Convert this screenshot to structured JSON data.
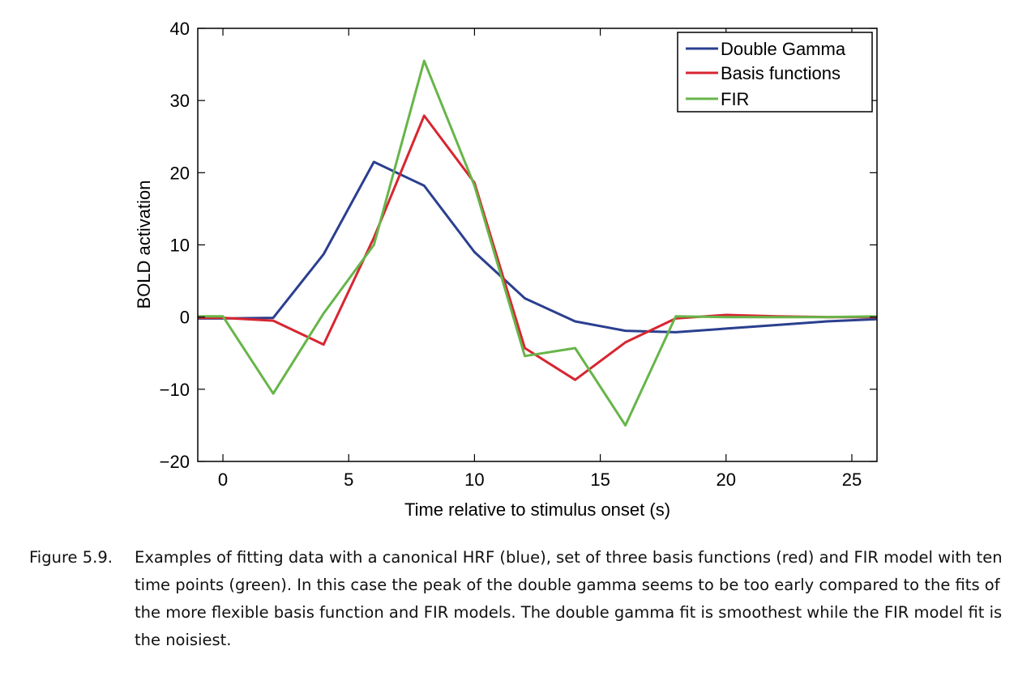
{
  "chart_data": {
    "type": "line",
    "xlabel": "Time relative to stimulus onset (s)",
    "ylabel": "BOLD activation",
    "xlim": [
      -1,
      26
    ],
    "ylim": [
      -20,
      40
    ],
    "xticks": [
      0,
      5,
      10,
      15,
      20,
      25
    ],
    "yticks": [
      -20,
      -10,
      0,
      10,
      20,
      30,
      40
    ],
    "xtick_labels": [
      "0",
      "5",
      "10",
      "15",
      "20",
      "25"
    ],
    "ytick_labels": [
      "−20",
      "−10",
      "0",
      "10",
      "20",
      "30",
      "40"
    ],
    "grid": false,
    "legend_position": "top-right",
    "series": [
      {
        "name": "Double Gamma",
        "color": "#2b3f8f",
        "x": [
          -1,
          0,
          2,
          4,
          6,
          8,
          10,
          12,
          14,
          16,
          18,
          20,
          22,
          24,
          26
        ],
        "y": [
          -0.2,
          -0.2,
          -0.1,
          8.7,
          21.5,
          18.2,
          9.0,
          2.6,
          -0.6,
          -1.9,
          -2.1,
          -1.6,
          -1.1,
          -0.6,
          -0.3
        ]
      },
      {
        "name": "Basis functions",
        "color": "#d72631",
        "x": [
          -1,
          0,
          2,
          4,
          6,
          8,
          10,
          12,
          14,
          16,
          18,
          20,
          22,
          24,
          26
        ],
        "y": [
          -0.1,
          -0.1,
          -0.5,
          -3.8,
          11.0,
          27.9,
          18.6,
          -4.3,
          -8.7,
          -3.5,
          -0.2,
          0.3,
          0.1,
          0.0,
          0.0
        ]
      },
      {
        "name": "FIR",
        "color": "#67b54a",
        "x": [
          -1,
          0,
          2,
          4,
          6,
          8,
          10,
          12,
          14,
          16,
          18,
          20,
          22,
          24,
          26
        ],
        "y": [
          0.1,
          0.1,
          -10.6,
          0.5,
          10.0,
          35.5,
          18.2,
          -5.4,
          -4.3,
          -15.0,
          0.1,
          0.0,
          0.0,
          0.0,
          0.1
        ]
      }
    ]
  },
  "caption": {
    "label": "Figure 5.9.",
    "text": "Examples of fitting data with a canonical HRF (blue), set of three basis functions (red) and FIR model with ten time points (green). In this case the peak of the double gamma seems to be too early compared to the fits of the more flexible basis function and FIR models. The double gamma fit is smoothest while the FIR model fit is the noisiest."
  }
}
